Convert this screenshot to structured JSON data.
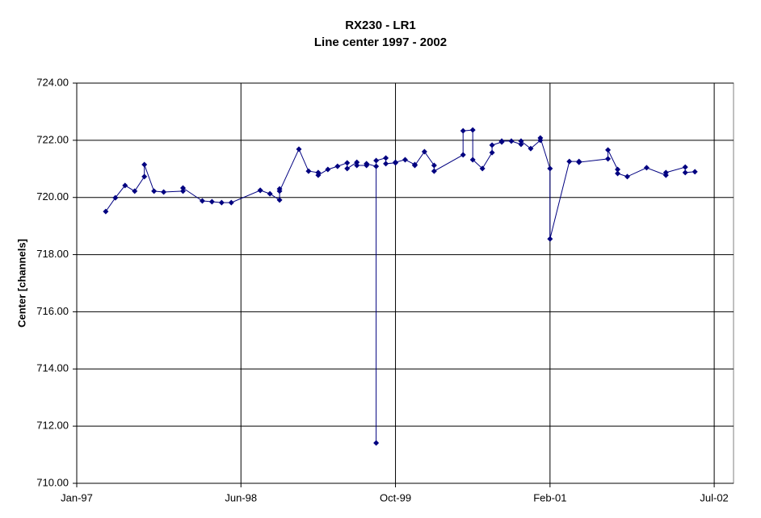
{
  "chart_data": {
    "type": "line",
    "title": "RX230 - LR1",
    "subtitle": "Line center 1997 - 2002",
    "y_label": "Center [channels]",
    "x": [
      "1997-04",
      "1997-05",
      "1997-06",
      "1997-07",
      "1997-08",
      "1997-08",
      "1997-09",
      "1997-10",
      "1997-12",
      "1997-12",
      "1998-02",
      "1998-03",
      "1998-04",
      "1998-05",
      "1998-08",
      "1998-08",
      "1998-09",
      "1998-10",
      "1998-10",
      "1998-10",
      "1998-12",
      "1999-01",
      "1999-02",
      "1999-02",
      "1999-03",
      "1999-04",
      "1999-05",
      "1999-05",
      "1999-06",
      "1999-06",
      "1999-07",
      "1999-07",
      "1999-08",
      "1999-08",
      "1999-08",
      "1999-09",
      "1999-09",
      "1999-10",
      "1999-10",
      "1999-11",
      "1999-12",
      "1999-12",
      "2000-01",
      "2000-02",
      "2000-02",
      "2000-05",
      "2000-05",
      "2000-06",
      "2000-06",
      "2000-07",
      "2000-08",
      "2000-08",
      "2000-09",
      "2000-09",
      "2000-10",
      "2000-11",
      "2000-11",
      "2000-12",
      "2001-01",
      "2001-01",
      "2001-02",
      "2001-02",
      "2001-04",
      "2001-05",
      "2001-05",
      "2001-08",
      "2001-08",
      "2001-09",
      "2001-09",
      "2001-10",
      "2001-12",
      "2002-02",
      "2002-02",
      "2002-04",
      "2002-04",
      "2002-05"
    ],
    "series": [
      {
        "name": "Line center",
        "color": "#000080",
        "values": [
          719.51,
          719.99,
          720.42,
          720.22,
          720.73,
          721.15,
          720.22,
          720.19,
          720.22,
          720.33,
          719.88,
          719.85,
          719.82,
          719.82,
          720.25,
          720.25,
          720.13,
          719.91,
          720.3,
          720.22,
          721.69,
          720.92,
          720.87,
          720.78,
          720.98,
          721.09,
          721.21,
          721.01,
          721.23,
          721.12,
          721.12,
          721.18,
          721.09,
          711.41,
          721.29,
          721.38,
          721.18,
          721.21,
          721.23,
          721.32,
          721.15,
          721.12,
          721.6,
          721.12,
          720.92,
          721.49,
          722.33,
          722.36,
          721.32,
          721.01,
          721.57,
          721.83,
          721.94,
          721.97,
          721.97,
          721.86,
          721.97,
          721.71,
          722.0,
          722.08,
          721.01,
          718.55,
          721.26,
          721.26,
          721.23,
          721.35,
          721.66,
          720.98,
          720.84,
          720.73,
          721.04,
          720.78,
          720.87,
          721.06,
          720.87,
          720.9
        ]
      }
    ],
    "xlim": [
      "1997-01",
      "2002-09"
    ],
    "xticks": [
      {
        "value": "1997-01",
        "label": "Jan-97"
      },
      {
        "value": "1998-06",
        "label": "Jun-98"
      },
      {
        "value": "1999-10",
        "label": "Oct-99"
      },
      {
        "value": "2001-02",
        "label": "Feb-01"
      },
      {
        "value": "2002-07",
        "label": "Jul-02"
      }
    ],
    "ylim": [
      710,
      724
    ],
    "yticks": [
      {
        "value": 710,
        "label": "710.00"
      },
      {
        "value": 712,
        "label": "712.00"
      },
      {
        "value": 714,
        "label": "714.00"
      },
      {
        "value": 716,
        "label": "716.00"
      },
      {
        "value": 718,
        "label": "718.00"
      },
      {
        "value": 720,
        "label": "720.00"
      },
      {
        "value": 722,
        "label": "722.00"
      },
      {
        "value": 724,
        "label": "724.00"
      }
    ],
    "grid": true
  }
}
